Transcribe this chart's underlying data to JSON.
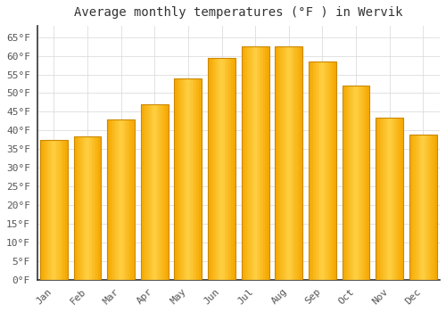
{
  "title": "Average monthly temperatures (°F ) in Wervik",
  "months": [
    "Jan",
    "Feb",
    "Mar",
    "Apr",
    "May",
    "Jun",
    "Jul",
    "Aug",
    "Sep",
    "Oct",
    "Nov",
    "Dec"
  ],
  "values": [
    37.5,
    38.5,
    43,
    47,
    54,
    59.5,
    62.5,
    62.5,
    58.5,
    52,
    43.5,
    39
  ],
  "bar_color_center": "#FFD044",
  "bar_color_edge": "#F5A800",
  "bar_edge_color": "#CC8800",
  "ylim": [
    0,
    68
  ],
  "yticks": [
    0,
    5,
    10,
    15,
    20,
    25,
    30,
    35,
    40,
    45,
    50,
    55,
    60,
    65
  ],
  "ytick_labels": [
    "0°F",
    "5°F",
    "10°F",
    "15°F",
    "20°F",
    "25°F",
    "30°F",
    "35°F",
    "40°F",
    "45°F",
    "50°F",
    "55°F",
    "60°F",
    "65°F"
  ],
  "grid_color": "#dddddd",
  "bg_color": "#ffffff",
  "title_fontsize": 10,
  "tick_fontsize": 8,
  "font_family": "monospace",
  "bar_width": 0.82
}
